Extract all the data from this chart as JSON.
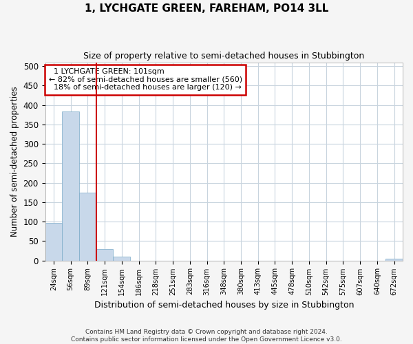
{
  "title": "1, LYCHGATE GREEN, FAREHAM, PO14 3LL",
  "subtitle": "Size of property relative to semi-detached houses in Stubbington",
  "xlabel": "Distribution of semi-detached houses by size in Stubbington",
  "ylabel": "Number of semi-detached properties",
  "property_label": "1 LYCHGATE GREEN: 101sqm",
  "pct_smaller": 82,
  "count_smaller": 560,
  "pct_larger": 18,
  "count_larger": 120,
  "bar_color": "#c8d8ea",
  "bar_edge_color": "#7aaac8",
  "vline_color": "#cc0000",
  "annotation_box_color": "#cc0000",
  "annotation_bg": "#ffffff",
  "categories": [
    "24sqm",
    "56sqm",
    "89sqm",
    "121sqm",
    "154sqm",
    "186sqm",
    "218sqm",
    "251sqm",
    "283sqm",
    "316sqm",
    "348sqm",
    "380sqm",
    "413sqm",
    "445sqm",
    "478sqm",
    "510sqm",
    "542sqm",
    "575sqm",
    "607sqm",
    "640sqm",
    "672sqm"
  ],
  "values": [
    97,
    383,
    175,
    30,
    9,
    0,
    0,
    0,
    0,
    0,
    0,
    0,
    0,
    0,
    0,
    0,
    0,
    0,
    0,
    0,
    5
  ],
  "ylim": [
    0,
    510
  ],
  "yticks": [
    0,
    50,
    100,
    150,
    200,
    250,
    300,
    350,
    400,
    450,
    500
  ],
  "vline_x_index": 2,
  "footnote1": "Contains HM Land Registry data © Crown copyright and database right 2024.",
  "footnote2": "Contains public sector information licensed under the Open Government Licence v3.0.",
  "bg_color": "#f5f5f5",
  "plot_bg_color": "#ffffff"
}
